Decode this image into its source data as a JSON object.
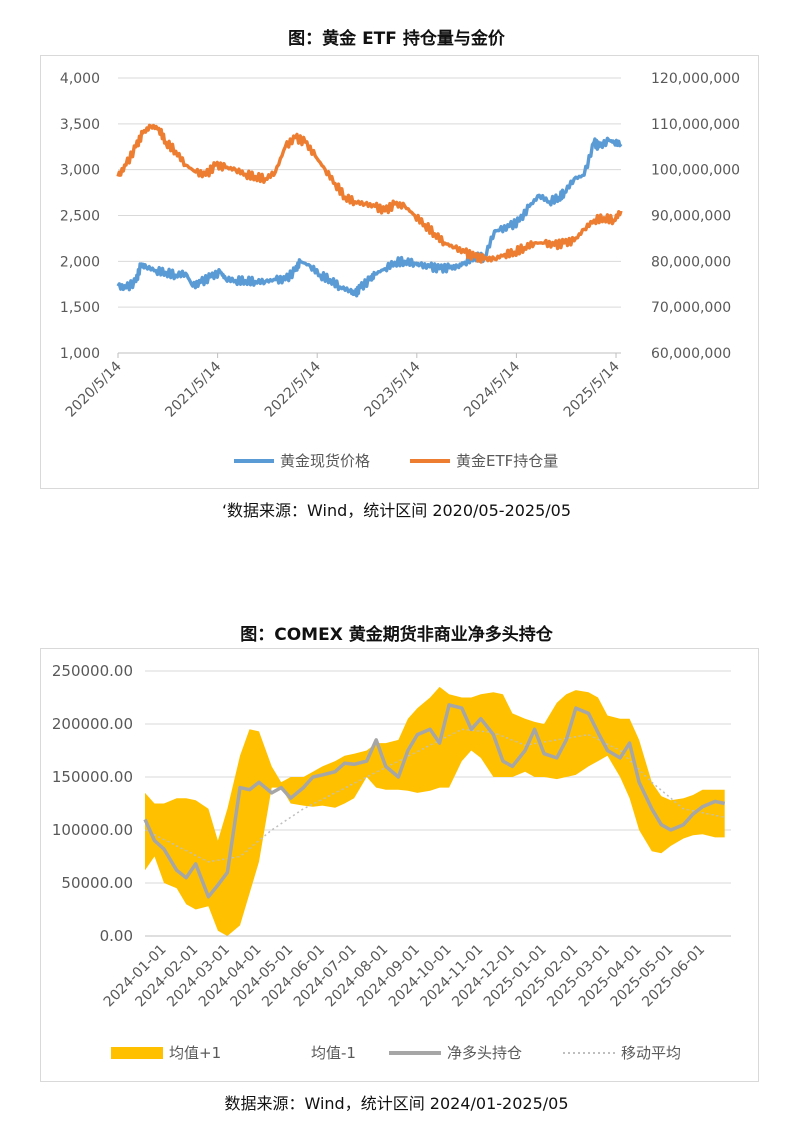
{
  "chart1": {
    "title": "图：黄金 ETF 持仓量与金价",
    "source": "‘数据来源：Wind，统计区间 2020/05-2025/05",
    "chart_data": {
      "type": "line",
      "x_tick_labels": [
        "2020/5/14",
        "2021/5/14",
        "2022/5/14",
        "2023/5/14",
        "2024/5/14",
        "2025/5/14"
      ],
      "y_left_ticks": [
        "1,000",
        "1,500",
        "2,000",
        "2,500",
        "3,000",
        "3,500",
        "4,000"
      ],
      "y_left_range": [
        1000,
        4000
      ],
      "y_right_ticks": [
        "60,000,000",
        "70,000,000",
        "80,000,000",
        "90,000,000",
        "100,000,000",
        "110,000,000",
        "120,000,000"
      ],
      "y_right_range": [
        60000000,
        120000000
      ],
      "grid": true,
      "legend_position": "bottom",
      "x_range": [
        2020.37,
        2025.42
      ],
      "series": [
        {
          "name": "黄金现货价格",
          "axis": "left",
          "color": "#5b9bd5",
          "x": [
            2020.37,
            2020.45,
            2020.55,
            2020.6,
            2020.65,
            2020.75,
            2020.85,
            2020.95,
            2021.05,
            2021.12,
            2021.2,
            2021.3,
            2021.4,
            2021.45,
            2021.55,
            2021.65,
            2021.75,
            2021.85,
            2021.95,
            2022.05,
            2022.15,
            2022.2,
            2022.3,
            2022.4,
            2022.5,
            2022.6,
            2022.7,
            2022.75,
            2022.8,
            2022.9,
            2022.95,
            2023.05,
            2023.15,
            2023.25,
            2023.35,
            2023.4,
            2023.5,
            2023.6,
            2023.7,
            2023.78,
            2023.85,
            2023.95,
            2024.05,
            2024.15,
            2024.2,
            2024.3,
            2024.4,
            2024.5,
            2024.6,
            2024.7,
            2024.8,
            2024.85,
            2024.95,
            2025.05,
            2025.15,
            2025.2,
            2025.3,
            2025.35,
            2025.42
          ],
          "y": [
            1730,
            1710,
            1780,
            1960,
            1940,
            1900,
            1880,
            1850,
            1870,
            1730,
            1770,
            1830,
            1880,
            1810,
            1790,
            1790,
            1780,
            1780,
            1800,
            1800,
            1900,
            2000,
            1950,
            1850,
            1800,
            1720,
            1680,
            1640,
            1710,
            1800,
            1860,
            1920,
            1990,
            2000,
            1980,
            1960,
            1940,
            1920,
            1930,
            1940,
            1990,
            2050,
            2040,
            2330,
            2340,
            2380,
            2440,
            2600,
            2720,
            2650,
            2700,
            2750,
            2900,
            2940,
            3300,
            3250,
            3320,
            3300,
            3280
          ]
        },
        {
          "name": "黄金ETF持仓量",
          "axis": "right",
          "color": "#ed7d31",
          "x": [
            2020.37,
            2020.45,
            2020.55,
            2020.62,
            2020.7,
            2020.78,
            2020.85,
            2020.95,
            2021.05,
            2021.15,
            2021.25,
            2021.35,
            2021.45,
            2021.55,
            2021.65,
            2021.75,
            2021.85,
            2021.95,
            2022.05,
            2022.15,
            2022.25,
            2022.35,
            2022.45,
            2022.55,
            2022.65,
            2022.75,
            2022.85,
            2022.95,
            2023.05,
            2023.15,
            2023.25,
            2023.35,
            2023.45,
            2023.55,
            2023.65,
            2023.75,
            2023.85,
            2023.95,
            2024.05,
            2024.15,
            2024.25,
            2024.35,
            2024.45,
            2024.55,
            2024.65,
            2024.75,
            2024.85,
            2024.95,
            2025.05,
            2025.15,
            2025.25,
            2025.35,
            2025.42
          ],
          "y": [
            98500000,
            101000000,
            105000000,
            108000000,
            109500000,
            109000000,
            106000000,
            104000000,
            101000000,
            99500000,
            98800000,
            101000000,
            100500000,
            100000000,
            99000000,
            98500000,
            98000000,
            99500000,
            105000000,
            107000000,
            106000000,
            103000000,
            100000000,
            97000000,
            94000000,
            93000000,
            92500000,
            92000000,
            91000000,
            92500000,
            92000000,
            90000000,
            88000000,
            86000000,
            84000000,
            83000000,
            82000000,
            81000000,
            80500000,
            80500000,
            81500000,
            82000000,
            83000000,
            84000000,
            84000000,
            83500000,
            84000000,
            84500000,
            87000000,
            89000000,
            89500000,
            89000000,
            91000000
          ]
        }
      ]
    }
  },
  "chart2": {
    "title": "图：COMEX 黄金期货非商业净多头持仓",
    "source": "数据来源：Wind，统计区间 2024/01-2025/05",
    "chart_data": {
      "type": "area",
      "categories": [
        "2024-01-01",
        "2024-02-01",
        "2024-03-01",
        "2024-04-01",
        "2024-05-01",
        "2024-06-01",
        "2024-07-01",
        "2024-08-01",
        "2024-09-01",
        "2024-10-01",
        "2024-11-01",
        "2024-12-01",
        "2025-01-01",
        "2025-02-01",
        "2025-03-01",
        "2025-04-01",
        "2025-05-01",
        "2025-06-01"
      ],
      "y_ticks": [
        "0.00",
        "50000.00",
        "100000.00",
        "150000.00",
        "200000.00",
        "250000.00"
      ],
      "y_range": [
        0,
        250000
      ],
      "grid": true,
      "legend_position": "bottom",
      "x_range": [
        0,
        18.5
      ],
      "series": [
        {
          "name": "均值+1",
          "color": "#ffc000",
          "kind": "band",
          "x": [
            0,
            0.3,
            0.6,
            1,
            1.3,
            1.6,
            2,
            2.3,
            2.6,
            3,
            3.3,
            3.6,
            4,
            4.3,
            4.6,
            5,
            5.3,
            5.6,
            6,
            6.3,
            6.6,
            7,
            7.3,
            7.6,
            8,
            8.3,
            8.6,
            9,
            9.3,
            9.6,
            10,
            10.3,
            10.6,
            11,
            11.3,
            11.6,
            12,
            12.3,
            12.6,
            13,
            13.3,
            13.6,
            14,
            14.3,
            14.6,
            15,
            15.3,
            15.6,
            16,
            16.3,
            16.6,
            17,
            17.3,
            17.6,
            18,
            18.3
          ],
          "upper": [
            135000,
            125000,
            125000,
            130000,
            130000,
            128000,
            120000,
            90000,
            120000,
            170000,
            195000,
            193000,
            160000,
            145000,
            150000,
            150000,
            155000,
            160000,
            165000,
            170000,
            172000,
            175000,
            182000,
            182000,
            185000,
            205000,
            215000,
            225000,
            235000,
            228000,
            225000,
            225000,
            228000,
            230000,
            228000,
            210000,
            205000,
            202000,
            200000,
            220000,
            228000,
            232000,
            230000,
            225000,
            208000,
            205000,
            205000,
            185000,
            145000,
            132000,
            128000,
            130000,
            133000,
            138000,
            138000,
            138000
          ],
          "lower": [
            62000,
            75000,
            50000,
            45000,
            30000,
            25000,
            28000,
            5000,
            0,
            10000,
            40000,
            70000,
            140000,
            140000,
            125000,
            123000,
            122000,
            123000,
            121000,
            125000,
            130000,
            150000,
            140000,
            138000,
            138000,
            137000,
            135000,
            137000,
            140000,
            140000,
            165000,
            175000,
            168000,
            150000,
            150000,
            150000,
            155000,
            150000,
            150000,
            148000,
            150000,
            152000,
            160000,
            165000,
            170000,
            150000,
            130000,
            100000,
            80000,
            78000,
            85000,
            92000,
            95000,
            96000,
            93000,
            93000
          ]
        },
        {
          "name": "均值-1",
          "color": "#ffffff",
          "kind": "legend-only"
        },
        {
          "name": "净多头持仓",
          "color": "#a6a6a6",
          "kind": "line",
          "x": [
            0,
            0.3,
            0.6,
            1,
            1.3,
            1.6,
            2,
            2.3,
            2.6,
            3,
            3.3,
            3.6,
            4,
            4.3,
            4.6,
            5,
            5.3,
            5.6,
            6,
            6.3,
            6.6,
            7,
            7.3,
            7.6,
            8,
            8.3,
            8.6,
            9,
            9.3,
            9.6,
            10,
            10.3,
            10.6,
            11,
            11.3,
            11.6,
            12,
            12.3,
            12.6,
            13,
            13.3,
            13.6,
            14,
            14.3,
            14.6,
            15,
            15.3,
            15.6,
            16,
            16.3,
            16.6,
            17,
            17.3,
            17.6,
            18,
            18.3
          ],
          "y": [
            110000,
            90000,
            82000,
            62000,
            55000,
            68000,
            37000,
            48000,
            60000,
            140000,
            138000,
            145000,
            135000,
            140000,
            130000,
            140000,
            150000,
            152000,
            155000,
            163000,
            162000,
            165000,
            185000,
            160000,
            150000,
            175000,
            190000,
            195000,
            182000,
            218000,
            215000,
            195000,
            205000,
            190000,
            165000,
            160000,
            175000,
            195000,
            172000,
            168000,
            185000,
            215000,
            210000,
            192000,
            175000,
            168000,
            182000,
            145000,
            120000,
            105000,
            100000,
            105000,
            115000,
            122000,
            127000,
            125000
          ]
        },
        {
          "name": "移动平均",
          "color": "#bfbfbf",
          "kind": "dotted",
          "x": [
            0,
            1,
            2,
            3,
            4,
            5,
            6,
            7,
            8,
            9,
            10,
            11,
            12,
            13,
            14,
            15,
            16,
            17,
            18.3
          ],
          "y": [
            100000,
            85000,
            70000,
            75000,
            100000,
            120000,
            135000,
            150000,
            165000,
            180000,
            195000,
            192000,
            180000,
            185000,
            190000,
            175000,
            145000,
            120000,
            112000
          ]
        }
      ]
    }
  }
}
